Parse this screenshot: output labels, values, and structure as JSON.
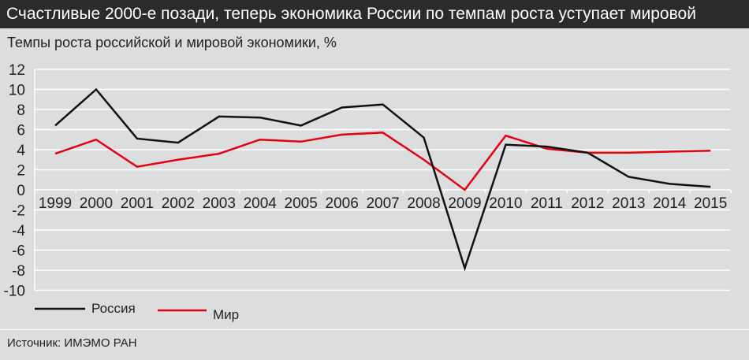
{
  "header": {
    "title": "Счастливые 2000-е позади, теперь экономика России по темпам роста уступает мировой"
  },
  "source": "Источник: ИМЭМО РАН",
  "chart_data": {
    "type": "line",
    "title": "Счастливые 2000-е позади, теперь экономика России по темпам роста уступает мировой",
    "subtitle": "Темпы роста российской и мировой экономики, %",
    "xlabel": "",
    "ylabel": "",
    "x": [
      "1999",
      "2000",
      "2001",
      "2002",
      "2003",
      "2004",
      "2005",
      "2006",
      "2007",
      "2008",
      "2009",
      "2010",
      "2011",
      "2012",
      "2013",
      "2014",
      "2015"
    ],
    "ylim": [
      -10,
      12
    ],
    "yticks": [
      12,
      10,
      8,
      6,
      4,
      2,
      0,
      -2,
      -4,
      -6,
      -8,
      -10
    ],
    "grid": true,
    "legend": "bottom-left",
    "series": [
      {
        "name": "Россия",
        "color": "#111111",
        "values": [
          6.4,
          10.0,
          5.1,
          4.7,
          7.3,
          7.2,
          6.4,
          8.2,
          8.5,
          5.2,
          -7.8,
          4.5,
          4.3,
          3.7,
          1.3,
          0.6,
          0.3
        ]
      },
      {
        "name": "Мир",
        "color": "#e3000f",
        "values": [
          3.6,
          5.0,
          2.3,
          3.0,
          3.6,
          5.0,
          4.8,
          5.5,
          5.7,
          3.0,
          0.0,
          5.4,
          4.1,
          3.7,
          3.7,
          3.8,
          3.9
        ]
      }
    ]
  }
}
